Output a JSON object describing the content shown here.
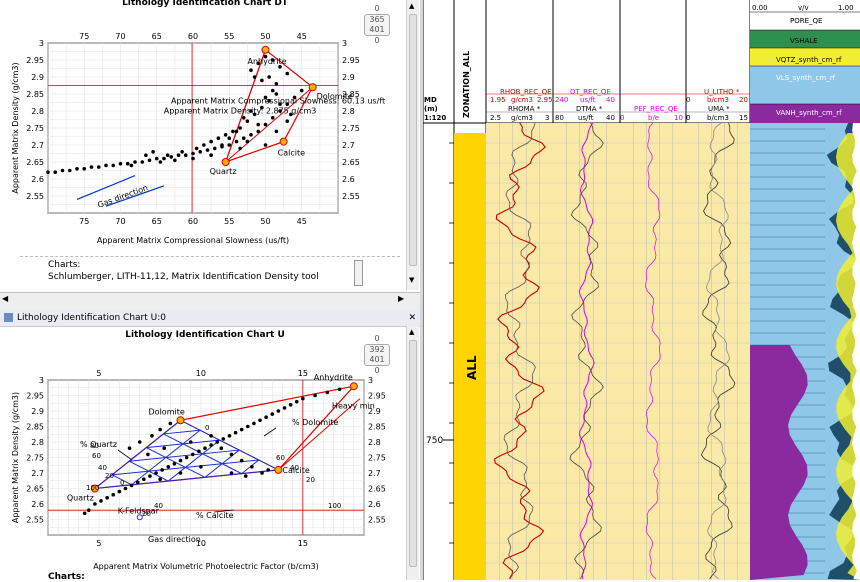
{
  "top_panel": {
    "title": "Lithology Identification Chart DT",
    "counter": {
      "top": "0",
      "box_top": "365",
      "box_bottom": "401",
      "bottom": "0"
    },
    "chart_label": "Charts:",
    "chart_value": "Schlumberger, LITH-11,12, Matrix Identification Density tool"
  },
  "bottom_panel": {
    "window_title": "Lithology Identification Chart U:0",
    "title": "Lithology Identification Chart U",
    "counter": {
      "top": "0",
      "box_top": "392",
      "box_bottom": "401",
      "bottom": "0"
    },
    "chart_label": "Charts:"
  },
  "log_header": {
    "md_label": "MD",
    "md_unit": "(m)",
    "scale": "1:120",
    "zonation": "ZONATION_ALL",
    "zone_name": "ALL",
    "depth_marker": "750",
    "tracks": [
      {
        "curve": "RHOB_REC_QE",
        "curve_color": "#d00000",
        "min": "1.95",
        "unit": "g/cm3",
        "max": "2.95",
        "curve2": "RHOMA *",
        "min2": "2.5",
        "unit2": "g/cm3",
        "max2": "3"
      },
      {
        "curve": "DT_REC_QE",
        "curve_color": "#e000e0",
        "min": "240",
        "unit": "us/ft",
        "max": "40",
        "curve2": "DTMA *",
        "min2": "80",
        "unit2": "us/ft",
        "max2": "40"
      },
      {
        "curve": "PEF_REC_QE",
        "curve_color": "#e000e0",
        "min": "0",
        "unit": "b/e",
        "max": "10",
        "curve2": "",
        "min2": "",
        "unit2": "",
        "max2": ""
      },
      {
        "curve": "U_LITHO *",
        "curve_color": "#d00000",
        "min": "0",
        "unit": "b/cm3",
        "max": "20",
        "curve2": "UMA *",
        "min2": "0",
        "unit2": "b/cm3",
        "max2": "15"
      }
    ],
    "litho_legend": [
      {
        "label": "0.00",
        "label2": "v/v",
        "label3": "1.00"
      },
      {
        "label": "PORE_QE"
      },
      {
        "label": "VSHALE"
      },
      {
        "label": "VQTZ_synth_cm_rf"
      },
      {
        "label": "VLS_synth_cm_rf"
      },
      {
        "label": "VANH_synth_cm_rf"
      }
    ]
  },
  "chart_data": [
    {
      "type": "scatter",
      "title": "Lithology Identification Chart DT",
      "xlabel": "Apparent Matrix Compressional Slowness (us/ft)",
      "ylabel": "Apparent Matrix Density (g/cm3)",
      "x_ticks": [
        "75",
        "70",
        "65",
        "60",
        "55",
        "50",
        "45"
      ],
      "y_ticks": [
        "3",
        "2.95",
        "2.9",
        "2.85",
        "2.8",
        "2.75",
        "2.7",
        "2.65",
        "2.6",
        "2.55"
      ],
      "xlim": [
        80,
        40
      ],
      "ylim": [
        2.5,
        3.0
      ],
      "crosshair": {
        "x": 60.13,
        "y": 2.875
      },
      "annotations": [
        "Apparent Matrix Compressional Slowness: 60.13 us/ft",
        "Apparent Matrix Density: 2.875 g/cm3"
      ],
      "minerals": [
        {
          "name": "Anhydrite",
          "x": 50.0,
          "y": 2.98
        },
        {
          "name": "Dolomite",
          "x": 43.5,
          "y": 2.87
        },
        {
          "name": "Calcite",
          "x": 47.5,
          "y": 2.71
        },
        {
          "name": "Quartz",
          "x": 55.5,
          "y": 2.65
        }
      ],
      "gas_arrow_label": "Gas direction",
      "points": [
        [
          80,
          2.62
        ],
        [
          79,
          2.62
        ],
        [
          78,
          2.625
        ],
        [
          77,
          2.625
        ],
        [
          76,
          2.63
        ],
        [
          75,
          2.63
        ],
        [
          74,
          2.635
        ],
        [
          73,
          2.635
        ],
        [
          72,
          2.64
        ],
        [
          71,
          2.64
        ],
        [
          70,
          2.645
        ],
        [
          69,
          2.645
        ],
        [
          68,
          2.65
        ],
        [
          67,
          2.65
        ],
        [
          66,
          2.655
        ],
        [
          65,
          2.66
        ],
        [
          64,
          2.66
        ],
        [
          63,
          2.665
        ],
        [
          62,
          2.67
        ],
        [
          61,
          2.67
        ],
        [
          60,
          2.675
        ],
        [
          59,
          2.68
        ],
        [
          58,
          2.685
        ],
        [
          57,
          2.69
        ],
        [
          56,
          2.695
        ],
        [
          55,
          2.7
        ],
        [
          54,
          2.71
        ],
        [
          53,
          2.72
        ],
        [
          52,
          2.73
        ],
        [
          51,
          2.74
        ],
        [
          50,
          2.76
        ],
        [
          49,
          2.78
        ],
        [
          48,
          2.8
        ],
        [
          47,
          2.82
        ],
        [
          46,
          2.84
        ],
        [
          45,
          2.86
        ],
        [
          66.5,
          2.67
        ],
        [
          65.5,
          2.68
        ],
        [
          63.5,
          2.67
        ],
        [
          61.5,
          2.68
        ],
        [
          59.5,
          2.69
        ],
        [
          58.5,
          2.7
        ],
        [
          57.5,
          2.71
        ],
        [
          56.5,
          2.72
        ],
        [
          55.5,
          2.73
        ],
        [
          54.5,
          2.74
        ],
        [
          53.5,
          2.75
        ],
        [
          52.5,
          2.77
        ],
        [
          51.5,
          2.79
        ],
        [
          50.5,
          2.81
        ],
        [
          49.5,
          2.83
        ],
        [
          48.5,
          2.85
        ],
        [
          52,
          2.92
        ],
        [
          51,
          2.94
        ],
        [
          50,
          2.96
        ],
        [
          49,
          2.95
        ],
        [
          48,
          2.93
        ],
        [
          47,
          2.91
        ],
        [
          49.5,
          2.9
        ],
        [
          48.5,
          2.88
        ],
        [
          50.5,
          2.89
        ],
        [
          51.5,
          2.9
        ],
        [
          49,
          2.86
        ],
        [
          50,
          2.84
        ],
        [
          48,
          2.82
        ],
        [
          52,
          2.8
        ],
        [
          53,
          2.78
        ],
        [
          51,
          2.76
        ],
        [
          54,
          2.74
        ],
        [
          55,
          2.72
        ],
        [
          56,
          2.7
        ],
        [
          50,
          2.7
        ],
        [
          46.5,
          2.79
        ],
        [
          47,
          2.77
        ],
        [
          48.5,
          2.74
        ],
        [
          52.5,
          2.71
        ],
        [
          53.5,
          2.69
        ],
        [
          57.5,
          2.67
        ],
        [
          60,
          2.66
        ],
        [
          62.5,
          2.655
        ],
        [
          64.5,
          2.65
        ],
        [
          68.5,
          2.64
        ]
      ]
    },
    {
      "type": "scatter",
      "title": "Lithology Identification Chart U",
      "xlabel": "Apparent Matrix Volumetric Photoelectric Factor (b/cm3)",
      "ylabel": "Apparent Matrix Density (g/cm3)",
      "x_ticks": [
        "5",
        "10",
        "15"
      ],
      "y_ticks": [
        "3",
        "2.95",
        "2.9",
        "2.85",
        "2.8",
        "2.75",
        "2.7",
        "2.65",
        "2.6",
        "2.55"
      ],
      "xlim": [
        2.5,
        18
      ],
      "ylim": [
        2.5,
        3.0
      ],
      "crosshair": {
        "x": 15.0,
        "y": 2.58
      },
      "minerals": [
        {
          "name": "Quartz",
          "x": 4.8,
          "y": 2.65
        },
        {
          "name": "Dolomite",
          "x": 9.0,
          "y": 2.87
        },
        {
          "name": "Anhydrite",
          "x": 17.5,
          "y": 2.98
        },
        {
          "name": "Calcite",
          "x": 13.8,
          "y": 2.71
        },
        {
          "name": "Heavy min",
          "x": 17.8,
          "y": 2.94
        },
        {
          "name": "K-Feldspar",
          "x": 7.0,
          "y": 2.57
        }
      ],
      "annotations": [
        "% Quartz",
        "% Dolomite",
        "% Calcite",
        "Gas direction",
        "0",
        "20",
        "40",
        "60",
        "80",
        "100"
      ],
      "points": [
        [
          4.3,
          2.57
        ],
        [
          4.5,
          2.58
        ],
        [
          4.8,
          2.6
        ],
        [
          5.1,
          2.61
        ],
        [
          5.4,
          2.62
        ],
        [
          5.7,
          2.63
        ],
        [
          6.0,
          2.64
        ],
        [
          6.3,
          2.65
        ],
        [
          6.6,
          2.66
        ],
        [
          6.9,
          2.67
        ],
        [
          7.2,
          2.68
        ],
        [
          7.5,
          2.69
        ],
        [
          7.8,
          2.7
        ],
        [
          8.1,
          2.71
        ],
        [
          8.4,
          2.72
        ],
        [
          8.7,
          2.73
        ],
        [
          9.0,
          2.74
        ],
        [
          9.3,
          2.75
        ],
        [
          9.6,
          2.76
        ],
        [
          9.9,
          2.77
        ],
        [
          10.2,
          2.78
        ],
        [
          10.5,
          2.79
        ],
        [
          10.8,
          2.8
        ],
        [
          11.1,
          2.81
        ],
        [
          11.4,
          2.82
        ],
        [
          11.7,
          2.83
        ],
        [
          12.0,
          2.84
        ],
        [
          12.3,
          2.85
        ],
        [
          12.6,
          2.86
        ],
        [
          12.9,
          2.87
        ],
        [
          13.2,
          2.88
        ],
        [
          13.5,
          2.89
        ],
        [
          13.8,
          2.9
        ],
        [
          14.1,
          2.91
        ],
        [
          14.4,
          2.92
        ],
        [
          14.7,
          2.93
        ],
        [
          15.0,
          2.94
        ],
        [
          15.6,
          2.95
        ],
        [
          16.2,
          2.96
        ],
        [
          16.8,
          2.97
        ],
        [
          6.5,
          2.78
        ],
        [
          7.0,
          2.8
        ],
        [
          7.6,
          2.82
        ],
        [
          8.0,
          2.84
        ],
        [
          8.5,
          2.86
        ],
        [
          7.4,
          2.76
        ],
        [
          8.2,
          2.78
        ],
        [
          9.5,
          2.8
        ],
        [
          10.5,
          2.82
        ],
        [
          11.0,
          2.78
        ],
        [
          11.5,
          2.76
        ],
        [
          12.0,
          2.74
        ],
        [
          12.5,
          2.72
        ],
        [
          13.0,
          2.7
        ],
        [
          10.0,
          2.72
        ],
        [
          9.0,
          2.7
        ],
        [
          8.0,
          2.68
        ],
        [
          11.5,
          2.7
        ],
        [
          12.2,
          2.69
        ],
        [
          13.3,
          2.71
        ]
      ]
    }
  ]
}
